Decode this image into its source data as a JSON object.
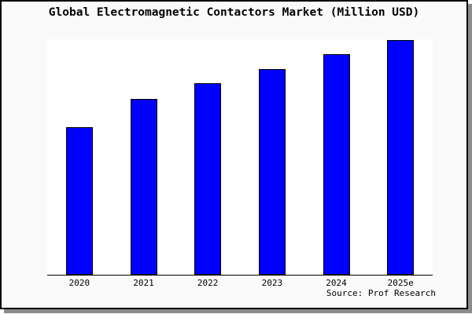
{
  "chart": {
    "title": "Global Electromagnetic Contactors Market (Million USD)",
    "source": "Source: Prof Research"
  },
  "colors": {
    "bar_fill": "#0000ff",
    "bar_border": "#000000",
    "frame_background": "#fafafa",
    "plot_background": "#ffffff",
    "axis_line": "#000000",
    "frame_border": "#000000",
    "frame_shadow": "#8c8c8c",
    "text": "#000000"
  },
  "chart_data": {
    "type": "bar",
    "title": "Global Electromagnetic Contactors Market (Million USD)",
    "categories": [
      "2020",
      "2021",
      "2022",
      "2023",
      "2024",
      "2025e"
    ],
    "values": [
      63,
      75,
      81.5,
      87.5,
      94,
      100
    ],
    "value_note": "y-axis has no tick labels or gridlines; values are relative units estimated from bar pixel heights with 2025e = 100",
    "xlabel": "",
    "ylabel": "",
    "ylim": [
      0,
      100.3
    ],
    "grid": false,
    "legend": false,
    "source": "Source: Prof Research"
  }
}
